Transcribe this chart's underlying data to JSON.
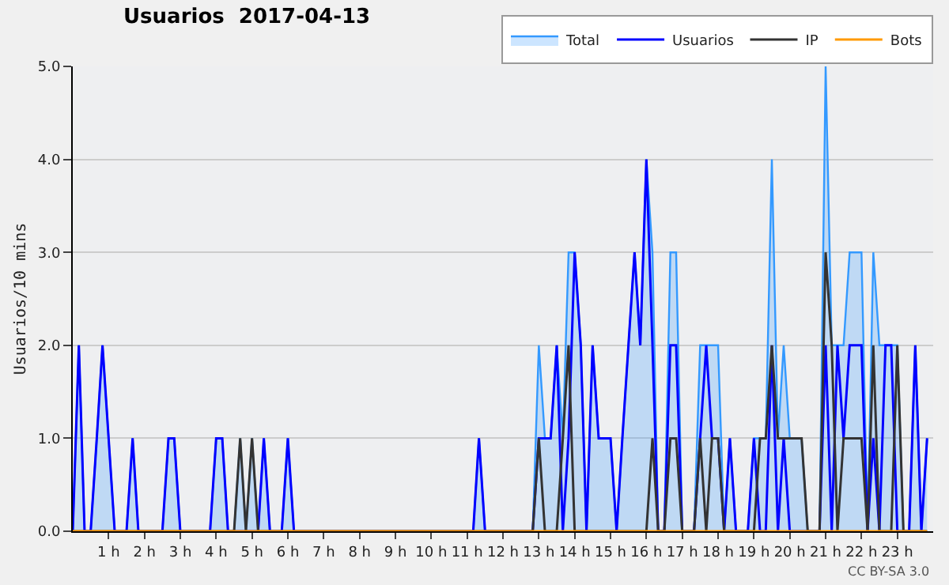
{
  "chart_data": {
    "type": "line",
    "title": "Usuarios  2017-04-13",
    "ylabel": "Usuarios/10 mins",
    "x": [
      0,
      0.17,
      0.33,
      0.5,
      0.67,
      0.83,
      1,
      1.17,
      1.33,
      1.5,
      1.67,
      1.83,
      2,
      2.17,
      2.33,
      2.5,
      2.67,
      2.83,
      3,
      3.17,
      3.33,
      3.5,
      3.67,
      3.83,
      4,
      4.17,
      4.33,
      4.5,
      4.67,
      4.83,
      5,
      5.17,
      5.33,
      5.5,
      5.67,
      5.83,
      6,
      6.17,
      6.33,
      6.5,
      6.67,
      6.83,
      7,
      7.17,
      7.33,
      7.5,
      7.67,
      7.83,
      8,
      8.17,
      8.33,
      8.5,
      8.67,
      8.83,
      9,
      9.17,
      9.33,
      9.5,
      9.67,
      9.83,
      10,
      10.17,
      10.33,
      10.5,
      10.67,
      10.83,
      11,
      11.17,
      11.33,
      11.5,
      11.67,
      11.83,
      12,
      12.17,
      12.33,
      12.5,
      12.67,
      12.83,
      13,
      13.17,
      13.33,
      13.5,
      13.67,
      13.83,
      14,
      14.17,
      14.33,
      14.5,
      14.67,
      14.83,
      15,
      15.17,
      15.33,
      15.5,
      15.67,
      15.83,
      16,
      16.17,
      16.33,
      16.5,
      16.67,
      16.83,
      17,
      17.17,
      17.33,
      17.5,
      17.67,
      17.83,
      18,
      18.17,
      18.33,
      18.5,
      18.67,
      18.83,
      19,
      19.17,
      19.33,
      19.5,
      19.67,
      19.83,
      20,
      20.17,
      20.33,
      20.5,
      20.67,
      20.83,
      21,
      21.17,
      21.33,
      21.5,
      21.67,
      21.83,
      22,
      22.17,
      22.33,
      22.5,
      22.67,
      22.83,
      23,
      23.17,
      23.33,
      23.5,
      23.67,
      23.83
    ],
    "series": [
      {
        "name": "Total",
        "type": "area",
        "color": "#3399ff",
        "values": [
          0,
          2,
          0,
          0,
          1,
          2,
          1,
          0,
          0,
          0,
          1,
          0,
          0,
          0,
          0,
          0,
          1,
          1,
          0,
          0,
          0,
          0,
          0,
          0,
          1,
          1,
          0,
          0,
          1,
          0,
          1,
          0,
          1,
          0,
          0,
          0,
          1,
          0,
          0,
          0,
          0,
          0,
          0,
          0,
          0,
          0,
          0,
          0,
          0,
          0,
          0,
          0,
          0,
          0,
          0,
          0,
          0,
          0,
          0,
          0,
          0,
          0,
          0,
          0,
          0,
          0,
          0,
          0,
          1,
          0,
          0,
          0,
          0,
          0,
          0,
          0,
          0,
          0,
          2,
          1,
          1,
          2,
          1,
          3,
          3,
          2,
          0,
          2,
          1,
          1,
          1,
          0,
          1,
          2,
          3,
          2,
          4,
          3,
          0,
          0,
          3,
          3,
          0,
          0,
          0,
          2,
          2,
          2,
          2,
          0,
          1,
          0,
          0,
          0,
          1,
          1,
          1,
          4,
          1,
          2,
          1,
          1,
          1,
          0,
          0,
          0,
          5,
          2,
          2,
          2,
          3,
          3,
          3,
          0,
          3,
          2,
          2,
          2,
          2,
          0,
          0,
          2,
          0,
          1
        ]
      },
      {
        "name": "Usuarios",
        "color": "#0000ff",
        "values": [
          0,
          2,
          0,
          0,
          1,
          2,
          1,
          0,
          0,
          0,
          1,
          0,
          0,
          0,
          0,
          0,
          1,
          1,
          0,
          0,
          0,
          0,
          0,
          0,
          1,
          1,
          0,
          0,
          0,
          0,
          0,
          0,
          1,
          0,
          0,
          0,
          1,
          0,
          0,
          0,
          0,
          0,
          0,
          0,
          0,
          0,
          0,
          0,
          0,
          0,
          0,
          0,
          0,
          0,
          0,
          0,
          0,
          0,
          0,
          0,
          0,
          0,
          0,
          0,
          0,
          0,
          0,
          0,
          1,
          0,
          0,
          0,
          0,
          0,
          0,
          0,
          0,
          0,
          1,
          1,
          1,
          2,
          0,
          1,
          3,
          2,
          0,
          2,
          1,
          1,
          1,
          0,
          1,
          2,
          3,
          2,
          4,
          2,
          0,
          0,
          2,
          2,
          0,
          0,
          0,
          1,
          2,
          1,
          1,
          0,
          1,
          0,
          0,
          0,
          1,
          0,
          0,
          2,
          0,
          1,
          0,
          0,
          0,
          0,
          0,
          0,
          2,
          0,
          2,
          1,
          2,
          2,
          2,
          0,
          1,
          0,
          2,
          2,
          0,
          0,
          0,
          2,
          0,
          1
        ]
      },
      {
        "name": "IP",
        "color": "#333333",
        "values": [
          0,
          0,
          0,
          0,
          0,
          0,
          0,
          0,
          0,
          0,
          0,
          0,
          0,
          0,
          0,
          0,
          0,
          0,
          0,
          0,
          0,
          0,
          0,
          0,
          0,
          0,
          0,
          0,
          1,
          0,
          1,
          0,
          0,
          0,
          0,
          0,
          0,
          0,
          0,
          0,
          0,
          0,
          0,
          0,
          0,
          0,
          0,
          0,
          0,
          0,
          0,
          0,
          0,
          0,
          0,
          0,
          0,
          0,
          0,
          0,
          0,
          0,
          0,
          0,
          0,
          0,
          0,
          0,
          0,
          0,
          0,
          0,
          0,
          0,
          0,
          0,
          0,
          0,
          1,
          0,
          0,
          0,
          1,
          2,
          0,
          0,
          0,
          0,
          0,
          0,
          0,
          0,
          0,
          0,
          0,
          0,
          0,
          1,
          0,
          0,
          1,
          1,
          0,
          0,
          0,
          1,
          0,
          1,
          1,
          0,
          0,
          0,
          0,
          0,
          0,
          1,
          1,
          2,
          1,
          1,
          1,
          1,
          1,
          0,
          0,
          0,
          3,
          2,
          0,
          1,
          1,
          1,
          1,
          0,
          2,
          0,
          0,
          0,
          2,
          0,
          0,
          0,
          0,
          0
        ]
      },
      {
        "name": "Bots",
        "color": "#ff9900",
        "values": [
          0,
          0,
          0,
          0,
          0,
          0,
          0,
          0,
          0,
          0,
          0,
          0,
          0,
          0,
          0,
          0,
          0,
          0,
          0,
          0,
          0,
          0,
          0,
          0,
          0,
          0,
          0,
          0,
          0,
          0,
          0,
          0,
          0,
          0,
          0,
          0,
          0,
          0,
          0,
          0,
          0,
          0,
          0,
          0,
          0,
          0,
          0,
          0,
          0,
          0,
          0,
          0,
          0,
          0,
          0,
          0,
          0,
          0,
          0,
          0,
          0,
          0,
          0,
          0,
          0,
          0,
          0,
          0,
          0,
          0,
          0,
          0,
          0,
          0,
          0,
          0,
          0,
          0,
          0,
          0,
          0,
          0,
          0,
          0,
          0,
          0,
          0,
          0,
          0,
          0,
          0,
          0,
          0,
          0,
          0,
          0,
          0,
          0,
          0,
          0,
          0,
          0,
          0,
          0,
          0,
          0,
          0,
          0,
          0,
          0,
          0,
          0,
          0,
          0,
          0,
          0,
          0,
          0,
          0,
          0,
          0,
          0,
          0,
          0,
          0,
          0,
          0,
          0,
          0,
          0,
          0,
          0,
          0,
          0,
          0,
          0,
          0,
          0,
          0,
          0,
          0,
          0,
          0,
          0
        ]
      }
    ],
    "xlim": [
      0,
      24
    ],
    "xticks": [
      {
        "value": 1,
        "label": "1 h"
      },
      {
        "value": 2,
        "label": "2 h"
      },
      {
        "value": 3,
        "label": "3 h"
      },
      {
        "value": 4,
        "label": "4 h"
      },
      {
        "value": 5,
        "label": "5 h"
      },
      {
        "value": 6,
        "label": "6 h"
      },
      {
        "value": 7,
        "label": "7 h"
      },
      {
        "value": 8,
        "label": "8 h"
      },
      {
        "value": 9,
        "label": "9 h"
      },
      {
        "value": 10,
        "label": "10 h"
      },
      {
        "value": 11,
        "label": "11 h"
      },
      {
        "value": 12,
        "label": "12 h"
      },
      {
        "value": 13,
        "label": "13 h"
      },
      {
        "value": 14,
        "label": "14 h"
      },
      {
        "value": 15,
        "label": "15 h"
      },
      {
        "value": 16,
        "label": "16 h"
      },
      {
        "value": 17,
        "label": "17 h"
      },
      {
        "value": 18,
        "label": "18 h"
      },
      {
        "value": 19,
        "label": "19 h"
      },
      {
        "value": 20,
        "label": "20 h"
      },
      {
        "value": 21,
        "label": "21 h"
      },
      {
        "value": 22,
        "label": "22 h"
      },
      {
        "value": 23,
        "label": "23 h"
      }
    ],
    "ylim": [
      0,
      5
    ],
    "yticks": [
      {
        "value": 0,
        "label": "0.0"
      },
      {
        "value": 1,
        "label": "1.0"
      },
      {
        "value": 2,
        "label": "2.0"
      },
      {
        "value": 3,
        "label": "3.0"
      },
      {
        "value": 4,
        "label": "4.0"
      },
      {
        "value": 5,
        "label": "5.0"
      }
    ],
    "grid": "y",
    "legend": "top right",
    "marker": "none",
    "line_style": "solid",
    "annotations": [
      "CC BY-SA 3.0"
    ]
  }
}
